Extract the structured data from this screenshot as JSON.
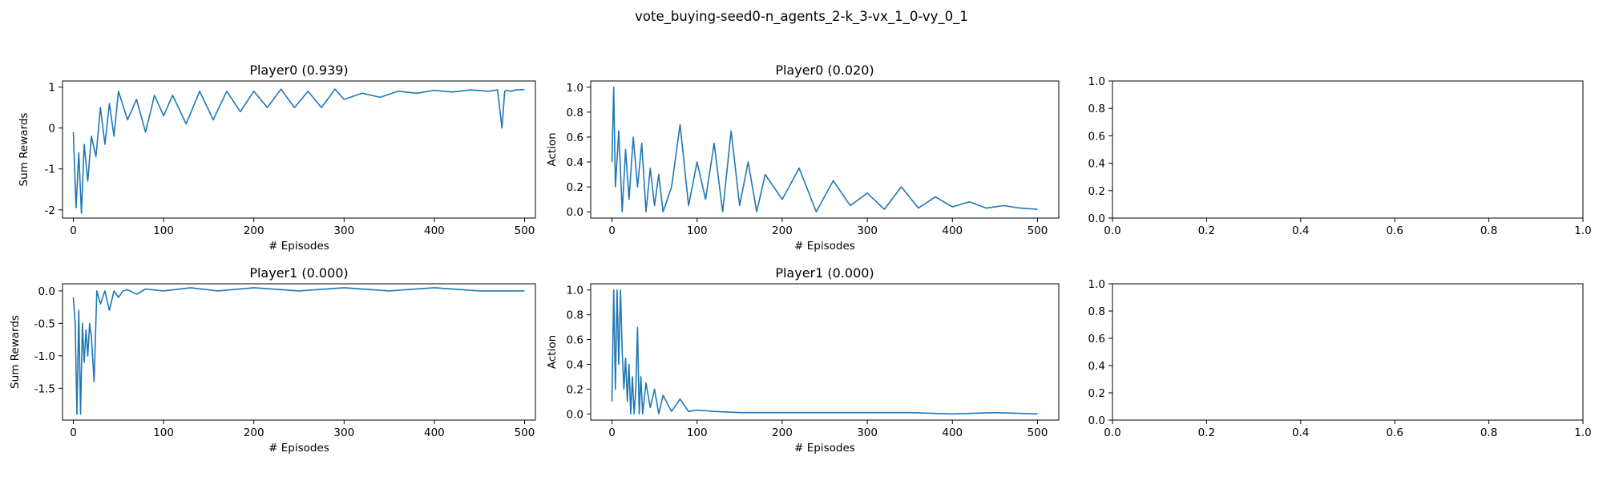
{
  "figure": {
    "suptitle": "vote_buying-seed0-n_agents_2-k_3-vx_1_0-vy_0_1",
    "line_color": "#1f77b4"
  },
  "chart_data": [
    {
      "type": "line",
      "title": "Player0 (0.939)",
      "xlabel": "# Episodes",
      "ylabel": "Sum Rewards",
      "xlim": [
        -12,
        512
      ],
      "ylim": [
        -2.2,
        1.15
      ],
      "xticks": [
        0,
        100,
        200,
        300,
        400,
        500
      ],
      "yticks": [
        -2,
        -1,
        0,
        1
      ],
      "x": [
        0,
        3,
        6,
        9,
        12,
        16,
        20,
        25,
        30,
        35,
        40,
        45,
        50,
        60,
        70,
        80,
        90,
        100,
        110,
        125,
        140,
        155,
        170,
        185,
        200,
        215,
        230,
        245,
        260,
        275,
        290,
        300,
        320,
        340,
        360,
        380,
        400,
        420,
        440,
        460,
        470,
        475,
        478,
        480,
        485,
        490,
        500
      ],
      "y": [
        -0.1,
        -1.95,
        -0.6,
        -2.08,
        -0.4,
        -1.3,
        -0.2,
        -0.7,
        0.5,
        -0.4,
        0.6,
        -0.2,
        0.9,
        0.2,
        0.7,
        -0.1,
        0.8,
        0.3,
        0.8,
        0.1,
        0.9,
        0.2,
        0.9,
        0.4,
        0.9,
        0.5,
        0.95,
        0.5,
        0.9,
        0.5,
        0.95,
        0.7,
        0.85,
        0.75,
        0.9,
        0.85,
        0.92,
        0.88,
        0.93,
        0.9,
        0.93,
        0.0,
        0.9,
        0.92,
        0.9,
        0.93,
        0.94
      ]
    },
    {
      "type": "line",
      "title": "Player0 (0.020)",
      "xlabel": "# Episodes",
      "ylabel": "Action",
      "xlim": [
        -25,
        525
      ],
      "ylim": [
        -0.05,
        1.05
      ],
      "xticks": [
        0,
        100,
        200,
        300,
        400,
        500
      ],
      "yticks": [
        0,
        0.2,
        0.4,
        0.6,
        0.8,
        1.0
      ],
      "x": [
        0,
        2,
        4,
        8,
        12,
        16,
        20,
        25,
        30,
        35,
        40,
        45,
        50,
        55,
        60,
        70,
        80,
        90,
        100,
        110,
        120,
        130,
        140,
        150,
        160,
        170,
        180,
        200,
        220,
        240,
        260,
        280,
        300,
        320,
        340,
        360,
        380,
        400,
        420,
        440,
        460,
        480,
        500
      ],
      "y": [
        0.4,
        1.0,
        0.2,
        0.65,
        0.0,
        0.5,
        0.1,
        0.6,
        0.2,
        0.55,
        0.0,
        0.35,
        0.05,
        0.3,
        0.0,
        0.2,
        0.7,
        0.05,
        0.4,
        0.1,
        0.55,
        0.0,
        0.65,
        0.05,
        0.4,
        0.0,
        0.3,
        0.1,
        0.35,
        0.0,
        0.25,
        0.05,
        0.15,
        0.02,
        0.2,
        0.03,
        0.12,
        0.04,
        0.08,
        0.03,
        0.05,
        0.03,
        0.02
      ]
    },
    {
      "type": "line",
      "title": "",
      "xlabel": "",
      "ylabel": "",
      "xlim": [
        0.0,
        1.0
      ],
      "ylim": [
        0.0,
        1.0
      ],
      "xticks": [
        0.0,
        0.2,
        0.4,
        0.6,
        0.8,
        1.0
      ],
      "yticks": [
        0.0,
        0.2,
        0.4,
        0.6,
        0.8,
        1.0
      ],
      "x": [],
      "y": []
    },
    {
      "type": "line",
      "title": "Player1 (0.000)",
      "xlabel": "# Episodes",
      "ylabel": "Sum Rewards",
      "xlim": [
        -12,
        512
      ],
      "ylim": [
        -1.99,
        0.11
      ],
      "xticks": [
        0,
        100,
        200,
        300,
        400,
        500
      ],
      "yticks": [
        0.0,
        -0.5,
        -1.0,
        -1.5
      ],
      "x": [
        0,
        2,
        4,
        6,
        8,
        10,
        12,
        14,
        16,
        18,
        20,
        23,
        26,
        30,
        35,
        40,
        45,
        50,
        55,
        60,
        70,
        80,
        100,
        130,
        160,
        200,
        250,
        300,
        350,
        400,
        450,
        500
      ],
      "y": [
        -0.1,
        -0.5,
        -1.9,
        -0.3,
        -1.9,
        -0.5,
        -1.1,
        -0.6,
        -1.0,
        -0.5,
        -0.7,
        -1.4,
        0.0,
        -0.2,
        0.0,
        -0.3,
        0.0,
        -0.1,
        0.0,
        0.02,
        -0.05,
        0.03,
        0.0,
        0.05,
        0.0,
        0.05,
        0.0,
        0.05,
        0.0,
        0.05,
        0.0,
        0.0
      ]
    },
    {
      "type": "line",
      "title": "Player1 (0.000)",
      "xlabel": "# Episodes",
      "ylabel": "Action",
      "xlim": [
        -25,
        525
      ],
      "ylim": [
        -0.05,
        1.05
      ],
      "xticks": [
        0,
        100,
        200,
        300,
        400,
        500
      ],
      "yticks": [
        0,
        0.2,
        0.4,
        0.6,
        0.8,
        1.0
      ],
      "x": [
        0,
        2,
        4,
        6,
        8,
        10,
        12,
        14,
        16,
        18,
        20,
        22,
        24,
        26,
        28,
        30,
        32,
        34,
        36,
        40,
        45,
        50,
        55,
        60,
        70,
        80,
        90,
        100,
        120,
        150,
        200,
        250,
        300,
        350,
        400,
        450,
        500
      ],
      "y": [
        0.1,
        1.0,
        0.2,
        1.0,
        0.4,
        1.0,
        0.5,
        0.2,
        0.45,
        0.1,
        0.4,
        0.0,
        0.3,
        0.0,
        0.2,
        0.7,
        0.0,
        0.3,
        0.0,
        0.25,
        0.05,
        0.2,
        0.0,
        0.15,
        0.02,
        0.12,
        0.02,
        0.03,
        0.02,
        0.01,
        0.01,
        0.01,
        0.01,
        0.01,
        0.0,
        0.01,
        0.0
      ]
    },
    {
      "type": "line",
      "title": "",
      "xlabel": "",
      "ylabel": "",
      "xlim": [
        0.0,
        1.0
      ],
      "ylim": [
        0.0,
        1.0
      ],
      "xticks": [
        0.0,
        0.2,
        0.4,
        0.6,
        0.8,
        1.0
      ],
      "yticks": [
        0.0,
        0.2,
        0.4,
        0.6,
        0.8,
        1.0
      ],
      "x": [],
      "y": []
    }
  ]
}
